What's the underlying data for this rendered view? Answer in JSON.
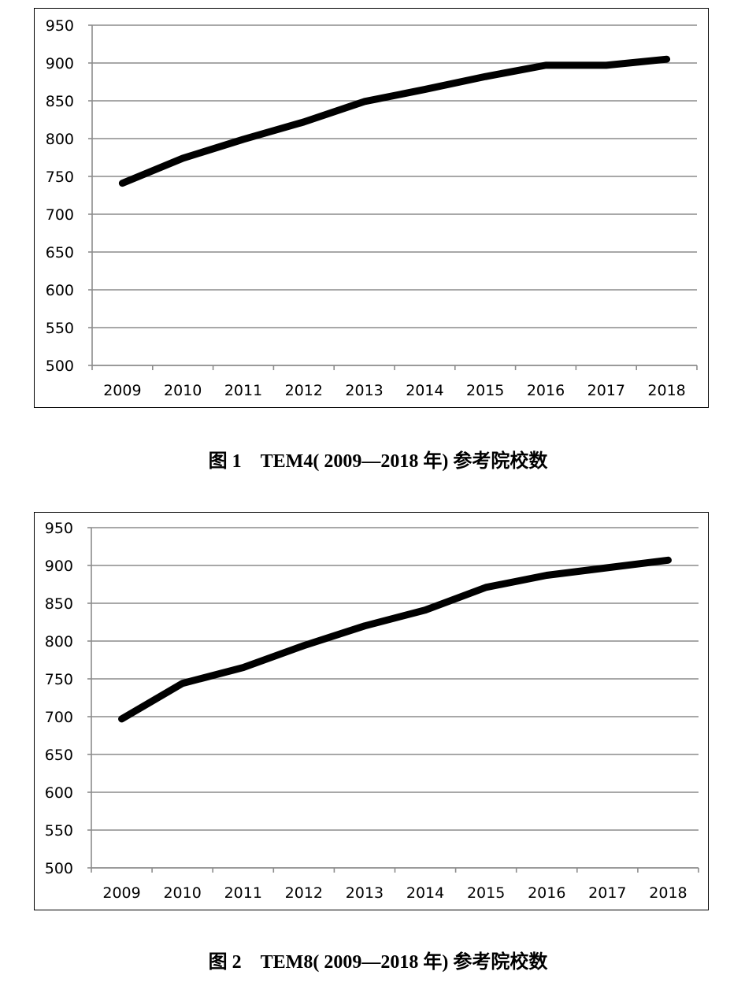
{
  "chart_data": [
    {
      "type": "line",
      "title": "",
      "xlabel": "",
      "ylabel": "",
      "categories": [
        "2009",
        "2010",
        "2011",
        "2012",
        "2013",
        "2014",
        "2015",
        "2016",
        "2017",
        "2018"
      ],
      "series": [
        {
          "values": [
            741,
            774,
            799,
            822,
            849,
            865,
            882,
            897,
            897,
            905
          ]
        }
      ],
      "ylim": [
        500,
        950
      ],
      "yticks": [
        500,
        550,
        600,
        650,
        700,
        750,
        800,
        850,
        900,
        950
      ],
      "grid": true,
      "legend": "none",
      "line_color": "#000000",
      "grid_color": "#8c8c8c"
    },
    {
      "type": "line",
      "title": "",
      "xlabel": "",
      "ylabel": "",
      "categories": [
        "2009",
        "2010",
        "2011",
        "2012",
        "2013",
        "2014",
        "2015",
        "2016",
        "2017",
        "2018"
      ],
      "series": [
        {
          "values": [
            697,
            744,
            765,
            794,
            820,
            841,
            871,
            887,
            897,
            907
          ]
        }
      ],
      "ylim": [
        500,
        950
      ],
      "yticks": [
        500,
        550,
        600,
        650,
        700,
        750,
        800,
        850,
        900,
        950
      ],
      "grid": true,
      "legend": "none",
      "line_color": "#000000",
      "grid_color": "#8c8c8c"
    }
  ],
  "captions": {
    "figure1": "图 1    TEM4( 2009—2018 年) 参考院校数",
    "figure2": "图 2    TEM8( 2009—2018 年) 参考院校数"
  }
}
